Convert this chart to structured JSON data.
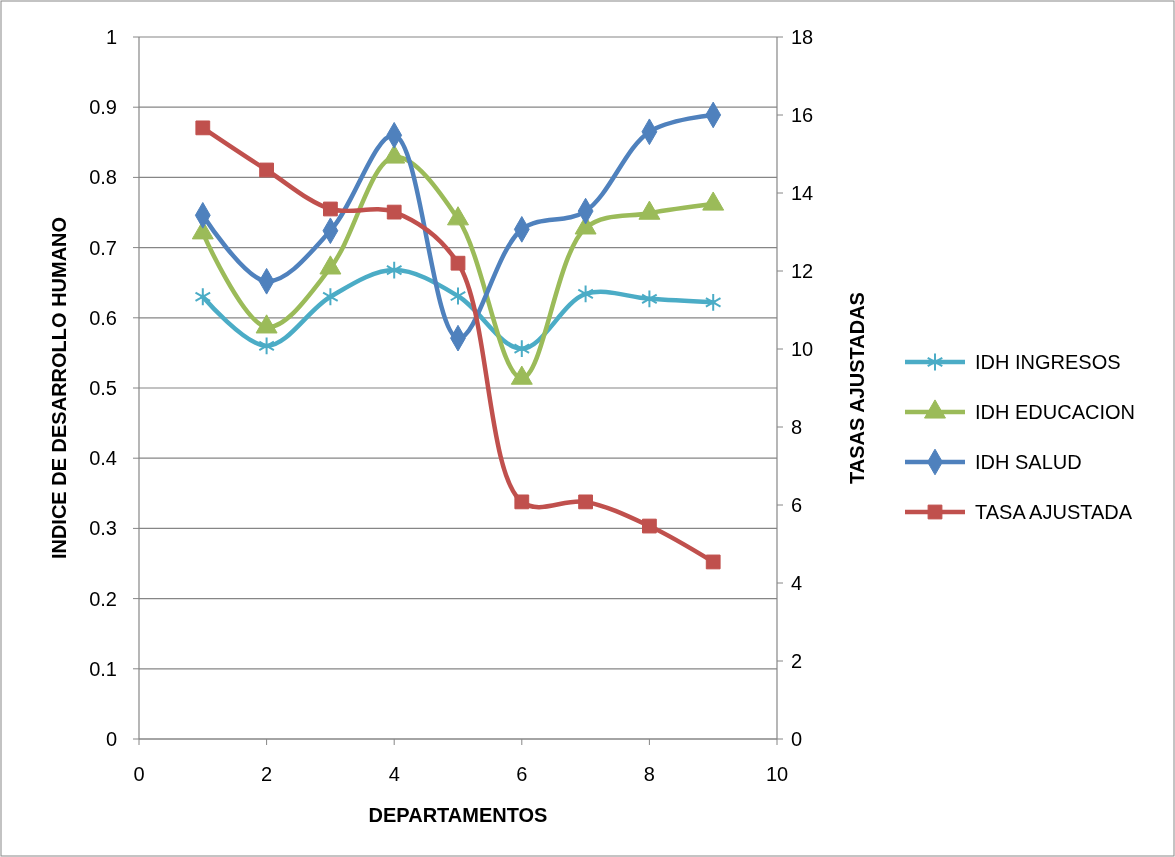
{
  "chart_data": {
    "type": "line",
    "xlabel": "DEPARTAMENTOS",
    "ylabel": "INDICE DE DESARROLLO HUMANO",
    "y2label": "TASAS AJUSTADAS",
    "x": [
      1,
      2,
      3,
      4,
      5,
      6,
      7,
      8,
      9
    ],
    "xlim": [
      0,
      10
    ],
    "xticks": [
      0,
      2,
      4,
      6,
      8,
      10
    ],
    "ylim": [
      0,
      1
    ],
    "yticks": [
      0,
      0.1,
      0.2,
      0.3,
      0.4,
      0.5,
      0.6,
      0.7,
      0.8,
      0.9,
      1
    ],
    "y2lim": [
      0,
      18
    ],
    "y2ticks": [
      0,
      2,
      4,
      6,
      8,
      10,
      12,
      14,
      16,
      18
    ],
    "grid": "y",
    "legend": "right",
    "series": [
      {
        "name": "IDH INGRESOS",
        "color": "#4bacc6",
        "marker": "cross",
        "values": [
          0.63,
          0.56,
          0.63,
          0.668,
          0.631,
          0.556,
          0.634,
          0.627,
          0.622
        ]
      },
      {
        "name": "IDH EDUCACION",
        "color": "#9bbb59",
        "marker": "triangle",
        "values": [
          0.721,
          0.587,
          0.671,
          0.829,
          0.741,
          0.514,
          0.728,
          0.749,
          0.762
        ]
      },
      {
        "name": "IDH SALUD",
        "color": "#4f81bd",
        "marker": "diamond",
        "values": [
          0.746,
          0.652,
          0.724,
          0.86,
          0.571,
          0.726,
          0.752,
          0.865,
          0.889
        ]
      },
      {
        "name": "TASA AJUSTADA",
        "color": "#c0504d",
        "marker": "square",
        "axis": "y2",
        "values": [
          15.67,
          14.59,
          13.59,
          13.51,
          12.2,
          6.08,
          6.08,
          5.46,
          4.54
        ]
      }
    ]
  }
}
